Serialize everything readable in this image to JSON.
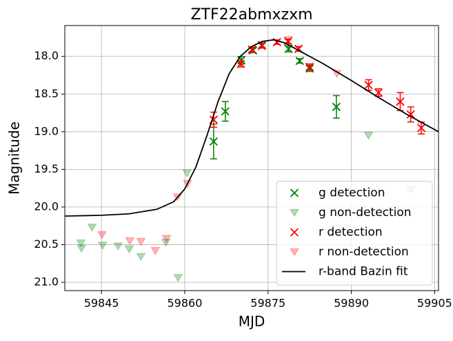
{
  "chart_data": {
    "type": "scatter",
    "title": "ZTF22abmxzxm",
    "xlabel": "MJD",
    "ylabel": "Magnitude",
    "xlim": [
      59838.4,
      59905.7
    ],
    "ylim": [
      21.11,
      17.59
    ],
    "xticks": [
      59845,
      59860,
      59875,
      59890,
      59905
    ],
    "yticks": [
      {
        "value": 18,
        "label": "18.0"
      },
      18.5,
      {
        "value": 19,
        "label": "19.0"
      },
      19.5,
      {
        "value": 20,
        "label": "20.0"
      },
      20.5,
      {
        "value": 21,
        "label": "21.0"
      }
    ],
    "grid": true,
    "legend": "lower right",
    "series": [
      {
        "name": "g detection",
        "color": "#008000",
        "marker": "x",
        "x": [
          59865.2,
          59867.3,
          59870.2,
          59872.3,
          59873.9,
          59878.7,
          59880.7,
          59882.5,
          59887.3
        ],
        "values": [
          19.13,
          18.73,
          18.05,
          17.92,
          17.85,
          17.9,
          18.06,
          18.16,
          18.67
        ],
        "errors": [
          0.23,
          0.13,
          0.05,
          0.03,
          0.03,
          0.04,
          0.03,
          0.04,
          0.15
        ]
      },
      {
        "name": "g non-detection",
        "color": "#008000",
        "marker": "triangle",
        "x": [
          59841.3,
          59841.4,
          59843.3,
          59845.2,
          59848.0,
          59850.0,
          59852.1,
          59856.6,
          59858.8,
          59860.4,
          59893.1,
          59900.7
        ],
        "values": [
          20.48,
          20.55,
          20.27,
          20.51,
          20.52,
          20.56,
          20.66,
          20.47,
          20.94,
          19.55,
          19.05,
          19.77
        ]
      },
      {
        "name": "r detection",
        "color": "#ff0000",
        "marker": "x",
        "x": [
          59865.2,
          59870.1,
          59872.1,
          59873.9,
          59876.6,
          59878.6,
          59880.5,
          59882.5,
          59893.1,
          59894.9,
          59898.8,
          59900.7,
          59902.6
        ],
        "values": [
          18.84,
          18.1,
          17.91,
          17.86,
          17.81,
          17.8,
          17.9,
          18.14,
          18.38,
          18.48,
          18.6,
          18.77,
          18.95
        ],
        "errors": [
          0.1,
          0.04,
          0.03,
          0.03,
          0.03,
          0.03,
          0.03,
          0.04,
          0.07,
          0.05,
          0.12,
          0.1,
          0.08
        ]
      },
      {
        "name": "r non-detection",
        "color": "#ff0000",
        "marker": "triangle",
        "x": [
          59845.1,
          59850.1,
          59852.1,
          59854.7,
          59856.7,
          59858.7,
          59860.5,
          59878.7,
          59887.4
        ],
        "values": [
          20.37,
          20.45,
          20.46,
          20.58,
          20.42,
          19.87,
          19.69,
          17.78,
          18.23
        ]
      },
      {
        "name": "r-band Bazin fit",
        "color": "#000000",
        "marker": "line",
        "x": [
          59838.4,
          59845,
          59850,
          59855,
          59858,
          59860,
          59862,
          59864,
          59866,
          59868,
          59870,
          59872,
          59874,
          59876,
          59878,
          59880,
          59885,
          59890,
          59895,
          59900,
          59905.7
        ],
        "values": [
          20.12,
          20.11,
          20.09,
          20.03,
          19.93,
          19.76,
          19.47,
          19.05,
          18.6,
          18.23,
          18.0,
          17.87,
          17.8,
          17.78,
          17.82,
          17.9,
          18.1,
          18.32,
          18.55,
          18.77,
          19.0
        ]
      }
    ]
  }
}
